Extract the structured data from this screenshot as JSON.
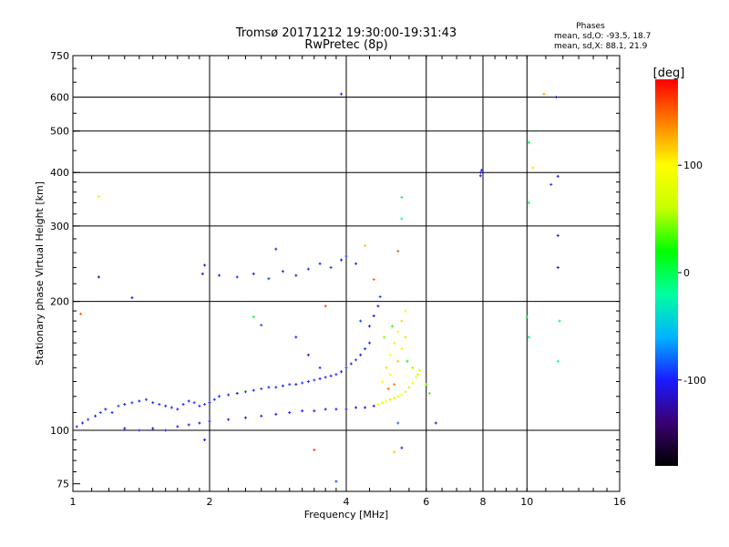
{
  "chart_data": {
    "type": "scatter",
    "title": "Tromsø 20171212 19:30:00-19:31:43",
    "subtitle": "RwPretec (8p)",
    "xlabel": "Frequency [MHz]",
    "ylabel": "Stationary phase Virtual Height [km]",
    "x_scale": "log",
    "y_scale": "log",
    "xlim": [
      1,
      16
    ],
    "ylim": [
      72,
      750
    ],
    "x_ticks": [
      1,
      2,
      4,
      6,
      8,
      10,
      16
    ],
    "y_ticks": [
      75,
      100,
      200,
      300,
      400,
      500,
      600,
      750
    ],
    "x_major_gridlines": [
      2,
      4,
      6,
      8,
      10
    ],
    "y_major_gridlines": [
      100,
      200,
      300,
      400,
      500,
      600
    ],
    "grid": true,
    "phase_stats": {
      "title": "Phases",
      "o_line": "mean, sd,O: -93.5, 18.7",
      "x_line": "mean, sd,X: 88.1, 21.9"
    },
    "colorbar": {
      "label": "[deg]",
      "range": [
        -180,
        180
      ],
      "ticks": [
        100,
        0,
        -100
      ],
      "colormap": [
        "#000000",
        "#3a0070",
        "#1a1aff",
        "#00b4ff",
        "#00ffa0",
        "#00ff00",
        "#c8ff00",
        "#ffff00",
        "#ff8000",
        "#ff0000"
      ]
    },
    "points": [
      [
        1.02,
        102,
        -95
      ],
      [
        1.05,
        104,
        -100
      ],
      [
        1.08,
        106,
        -90
      ],
      [
        1.12,
        108,
        -98
      ],
      [
        1.15,
        110,
        -92
      ],
      [
        1.18,
        112,
        -105
      ],
      [
        1.22,
        110,
        -95
      ],
      [
        1.26,
        114,
        -88
      ],
      [
        1.3,
        115,
        -100
      ],
      [
        1.35,
        116,
        -95
      ],
      [
        1.4,
        117,
        -110
      ],
      [
        1.45,
        118,
        -92
      ],
      [
        1.5,
        116,
        -98
      ],
      [
        1.55,
        115,
        -90
      ],
      [
        1.6,
        114,
        -102
      ],
      [
        1.65,
        113,
        -96
      ],
      [
        1.7,
        112,
        -100
      ],
      [
        1.75,
        115,
        -94
      ],
      [
        1.8,
        117,
        -108
      ],
      [
        1.85,
        116,
        -92
      ],
      [
        1.9,
        114,
        -98
      ],
      [
        1.95,
        115,
        -90
      ],
      [
        2.0,
        116,
        -102
      ],
      [
        2.05,
        118,
        -96
      ],
      [
        2.1,
        120,
        -100
      ],
      [
        2.2,
        121,
        -95
      ],
      [
        2.3,
        122,
        -110
      ],
      [
        2.4,
        123,
        -92
      ],
      [
        2.5,
        124,
        -98
      ],
      [
        2.6,
        125,
        -90
      ],
      [
        2.7,
        126,
        -102
      ],
      [
        2.8,
        126,
        -96
      ],
      [
        2.9,
        127,
        -100
      ],
      [
        3.0,
        128,
        -94
      ],
      [
        3.1,
        128,
        -108
      ],
      [
        3.2,
        129,
        -92
      ],
      [
        3.3,
        130,
        -98
      ],
      [
        3.4,
        131,
        -90
      ],
      [
        3.5,
        132,
        -102
      ],
      [
        3.6,
        133,
        -96
      ],
      [
        3.7,
        134,
        -100
      ],
      [
        3.8,
        135,
        -95
      ],
      [
        3.9,
        137,
        -110
      ],
      [
        4.0,
        140,
        -92
      ],
      [
        4.1,
        143,
        -98
      ],
      [
        4.2,
        146,
        -90
      ],
      [
        4.3,
        150,
        -102
      ],
      [
        4.4,
        155,
        -96
      ],
      [
        4.5,
        160,
        -100
      ],
      [
        1.3,
        101,
        -110
      ],
      [
        1.4,
        100,
        -105
      ],
      [
        1.5,
        101,
        -115
      ],
      [
        1.6,
        100,
        -108
      ],
      [
        1.7,
        102,
        -112
      ],
      [
        1.8,
        103,
        -104
      ],
      [
        1.9,
        104,
        -110
      ],
      [
        2.0,
        105,
        -100
      ],
      [
        2.2,
        106,
        -108
      ],
      [
        2.4,
        107,
        -112
      ],
      [
        2.6,
        108,
        -104
      ],
      [
        2.8,
        109,
        -110
      ],
      [
        3.0,
        110,
        -100
      ],
      [
        3.2,
        111,
        -108
      ],
      [
        3.4,
        111,
        -112
      ],
      [
        3.6,
        112,
        -104
      ],
      [
        3.8,
        112,
        -110
      ],
      [
        4.0,
        112,
        -100
      ],
      [
        4.2,
        113,
        -108
      ],
      [
        4.4,
        113,
        -112
      ],
      [
        4.6,
        114,
        -104
      ],
      [
        4.7,
        115,
        80
      ],
      [
        4.8,
        116,
        70
      ],
      [
        4.9,
        117,
        90
      ],
      [
        5.0,
        118,
        60
      ],
      [
        5.1,
        119,
        75
      ],
      [
        5.2,
        120,
        85
      ],
      [
        5.3,
        121,
        95
      ],
      [
        5.4,
        123,
        70
      ],
      [
        5.5,
        126,
        65
      ],
      [
        5.6,
        129,
        80
      ],
      [
        5.7,
        133,
        90
      ],
      [
        5.8,
        138,
        70
      ],
      [
        4.8,
        130,
        100
      ],
      [
        4.9,
        140,
        110
      ],
      [
        5.0,
        150,
        90
      ],
      [
        5.1,
        160,
        105
      ],
      [
        5.2,
        170,
        95
      ],
      [
        5.3,
        180,
        115
      ],
      [
        5.4,
        190,
        100
      ],
      [
        5.2,
        145,
        120
      ],
      [
        5.3,
        155,
        85
      ],
      [
        5.4,
        165,
        110
      ],
      [
        5.0,
        135,
        95
      ],
      [
        5.1,
        128,
        140
      ],
      [
        4.95,
        125,
        150
      ],
      [
        2.1,
        230,
        -100
      ],
      [
        2.3,
        228,
        -95
      ],
      [
        2.5,
        232,
        -105
      ],
      [
        2.7,
        226,
        -92
      ],
      [
        2.9,
        235,
        -98
      ],
      [
        3.1,
        230,
        -102
      ],
      [
        3.3,
        238,
        -96
      ],
      [
        3.5,
        245,
        -100
      ],
      [
        3.7,
        240,
        -94
      ],
      [
        3.9,
        250,
        -108
      ],
      [
        4.0,
        255,
        -92
      ],
      [
        4.2,
        245,
        -98
      ],
      [
        4.4,
        270,
        120
      ],
      [
        4.6,
        225,
        150
      ],
      [
        3.6,
        195,
        160
      ],
      [
        2.8,
        265,
        -110
      ],
      [
        3.9,
        610,
        -110
      ],
      [
        5.3,
        350,
        0
      ],
      [
        5.3,
        312,
        -10
      ],
      [
        5.2,
        262,
        150
      ],
      [
        10.9,
        610,
        130
      ],
      [
        10.1,
        470,
        10
      ],
      [
        10.3,
        410,
        110
      ],
      [
        10.1,
        340,
        0
      ],
      [
        11.6,
        600,
        -120
      ],
      [
        11.3,
        375,
        -90
      ],
      [
        11.7,
        392,
        -110
      ],
      [
        11.7,
        285,
        -115
      ],
      [
        11.7,
        240,
        -120
      ],
      [
        11.8,
        180,
        0
      ],
      [
        11.7,
        145,
        -20
      ],
      [
        10.0,
        184,
        10
      ],
      [
        10.1,
        165,
        -5
      ],
      [
        7.9,
        400,
        -110
      ],
      [
        7.9,
        393,
        -105
      ],
      [
        7.95,
        405,
        -100
      ],
      [
        1.04,
        187,
        150
      ],
      [
        1.14,
        352,
        60
      ],
      [
        1.14,
        228,
        -130
      ],
      [
        1.35,
        204,
        -100
      ],
      [
        1.95,
        243,
        -110
      ],
      [
        1.93,
        232,
        -120
      ],
      [
        1.95,
        95,
        -110
      ],
      [
        3.4,
        90,
        160
      ],
      [
        3.8,
        76,
        -90
      ],
      [
        5.3,
        91,
        -100
      ],
      [
        5.1,
        89,
        120
      ],
      [
        6.3,
        104,
        -110
      ],
      [
        5.2,
        104,
        -80
      ],
      [
        2.5,
        184,
        10
      ],
      [
        2.6,
        176,
        -90
      ],
      [
        3.1,
        165,
        -100
      ],
      [
        3.3,
        150,
        -110
      ],
      [
        3.5,
        140,
        -95
      ],
      [
        4.3,
        180,
        -90
      ],
      [
        4.5,
        175,
        -100
      ],
      [
        4.6,
        185,
        -105
      ],
      [
        4.7,
        195,
        -110
      ],
      [
        4.75,
        205,
        -90
      ],
      [
        4.85,
        165,
        40
      ],
      [
        5.05,
        175,
        30
      ],
      [
        5.45,
        145,
        20
      ],
      [
        5.6,
        140,
        50
      ],
      [
        5.75,
        135,
        60
      ],
      [
        6.0,
        128,
        40
      ],
      [
        6.1,
        122,
        30
      ]
    ]
  }
}
